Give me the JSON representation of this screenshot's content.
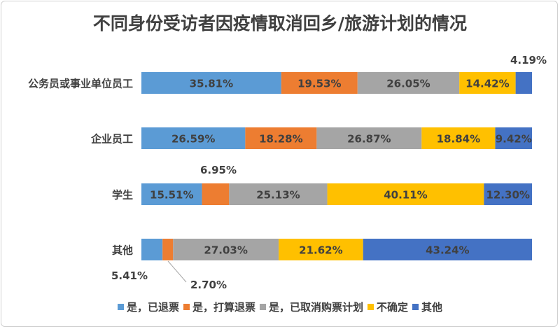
{
  "chart_data": {
    "type": "bar",
    "orientation": "horizontal",
    "stacked": "100%",
    "title": "不同身份受访者因疫情取消回乡/旅游计划的情况",
    "categories": [
      "公务员或事业单位员工",
      "企业员工",
      "学生",
      "其他"
    ],
    "series": [
      {
        "name": "是，已退票",
        "color": "#5B9BD5",
        "values": [
          35.81,
          26.59,
          15.51,
          5.41
        ]
      },
      {
        "name": "是，打算退票",
        "color": "#ED7D31",
        "values": [
          19.53,
          18.28,
          6.95,
          2.7
        ]
      },
      {
        "name": "是，已取消购票计划",
        "color": "#A5A5A5",
        "values": [
          26.05,
          26.87,
          25.13,
          27.03
        ]
      },
      {
        "name": "不确定",
        "color": "#FFC000",
        "values": [
          14.42,
          18.84,
          40.11,
          21.62
        ]
      },
      {
        "name": "其他",
        "color": "#4472C4",
        "values": [
          4.19,
          9.42,
          12.3,
          43.24
        ]
      }
    ],
    "value_format": "percent_2dp",
    "xlim": [
      0,
      100
    ],
    "grid": false,
    "legend_position": "bottom"
  }
}
